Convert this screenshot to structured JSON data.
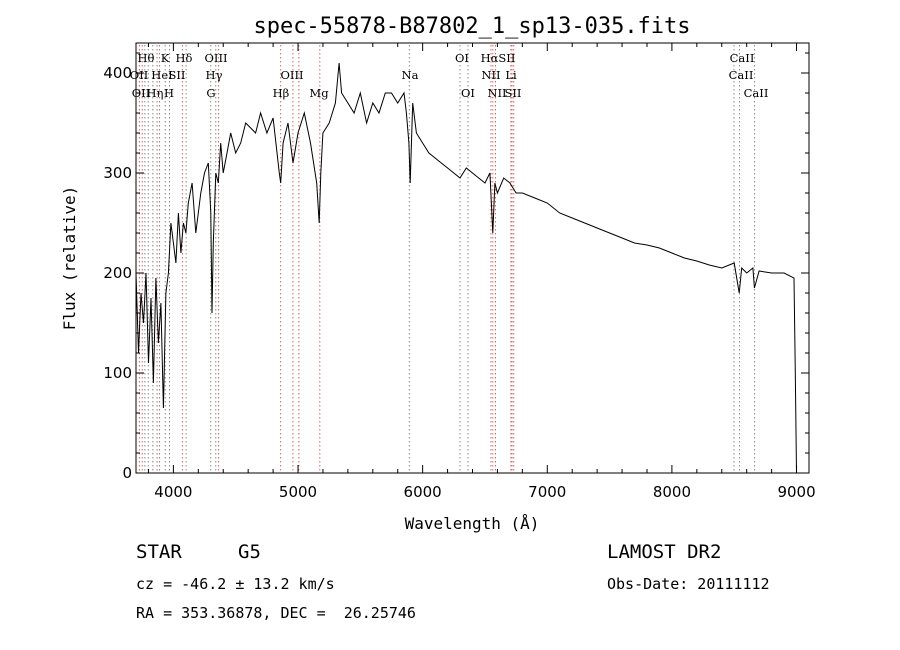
{
  "chart_data": {
    "type": "line",
    "title": "spec-55878-B87802_1_sp13-035.fits",
    "xlabel": "Wavelength (Å)",
    "ylabel": "Flux (relative)",
    "xlim": [
      3700,
      9100
    ],
    "ylim": [
      0,
      430
    ],
    "x_ticks": [
      4000,
      5000,
      6000,
      7000,
      8000,
      9000
    ],
    "y_ticks": [
      0,
      100,
      200,
      300,
      400
    ],
    "series": [
      {
        "x": [
          3700,
          3720,
          3740,
          3760,
          3780,
          3800,
          3820,
          3840,
          3860,
          3880,
          3900,
          3920,
          3940,
          3960,
          3980,
          4000,
          4020,
          4040,
          4060,
          4080,
          4100,
          4120,
          4150,
          4180,
          4200,
          4220,
          4250,
          4280,
          4300,
          4310,
          4320,
          4340,
          4360,
          4380,
          4400,
          4430,
          4460,
          4500,
          4540,
          4580,
          4620,
          4660,
          4700,
          4750,
          4800,
          4850,
          4861,
          4880,
          4920,
          4960,
          5000,
          5050,
          5100,
          5150,
          5170,
          5183,
          5200,
          5250,
          5300,
          5330,
          5350,
          5400,
          5450,
          5500,
          5550,
          5600,
          5650,
          5700,
          5750,
          5800,
          5850,
          5870,
          5890,
          5900,
          5920,
          5950,
          6000,
          6050,
          6100,
          6150,
          6200,
          6250,
          6300,
          6350,
          6400,
          6450,
          6500,
          6540,
          6563,
          6580,
          6600,
          6650,
          6700,
          6750,
          6800,
          6900,
          7000,
          7100,
          7200,
          7300,
          7400,
          7500,
          7600,
          7700,
          7800,
          7900,
          8000,
          8100,
          8200,
          8300,
          8400,
          8500,
          8540,
          8560,
          8600,
          8650,
          8662,
          8700,
          8800,
          8900,
          8980,
          8990,
          9000
        ],
        "y": [
          200,
          120,
          180,
          150,
          200,
          110,
          175,
          90,
          195,
          130,
          170,
          65,
          180,
          200,
          250,
          230,
          210,
          260,
          220,
          250,
          240,
          270,
          290,
          240,
          260,
          280,
          300,
          310,
          260,
          160,
          230,
          300,
          290,
          330,
          300,
          320,
          340,
          320,
          330,
          350,
          345,
          340,
          360,
          340,
          355,
          300,
          290,
          330,
          350,
          310,
          340,
          360,
          330,
          290,
          250,
          300,
          340,
          350,
          370,
          410,
          380,
          370,
          360,
          380,
          350,
          370,
          360,
          380,
          380,
          370,
          380,
          360,
          330,
          290,
          370,
          340,
          330,
          320,
          315,
          310,
          305,
          300,
          295,
          305,
          300,
          295,
          290,
          300,
          240,
          290,
          280,
          295,
          290,
          280,
          280,
          275,
          270,
          260,
          255,
          250,
          245,
          240,
          235,
          230,
          228,
          225,
          220,
          215,
          212,
          208,
          205,
          210,
          180,
          205,
          200,
          205,
          185,
          202,
          200,
          200,
          195,
          100,
          0
        ]
      }
    ],
    "lines": {
      "row1": [
        "Hθ",
        "K",
        "Hδ",
        "OIII",
        "OI",
        "HαSII",
        "CaII"
      ],
      "row2": [
        "OII",
        "HeI",
        "SII",
        "Hγ",
        "OIII",
        "Na",
        "NII",
        "Li",
        "CaII"
      ],
      "row3": [
        "OII",
        "Hη",
        "H",
        "G",
        "Hβ",
        "Mg",
        "OI",
        "NII",
        "SII",
        "CaII"
      ]
    },
    "grid": false,
    "legend": "none"
  },
  "info": {
    "object_class": "STAR",
    "subclass": "G5",
    "survey": "LAMOST DR2",
    "cz": "cz = -46.2 ± 13.2 km/s",
    "obs_date": "Obs-Date: 20111112",
    "coords": "RA = 353.36878, DEC =  26.25746"
  },
  "colors": {
    "foreground": "#000000",
    "emission_line": "#d04040",
    "absorption_line": "#707070"
  }
}
